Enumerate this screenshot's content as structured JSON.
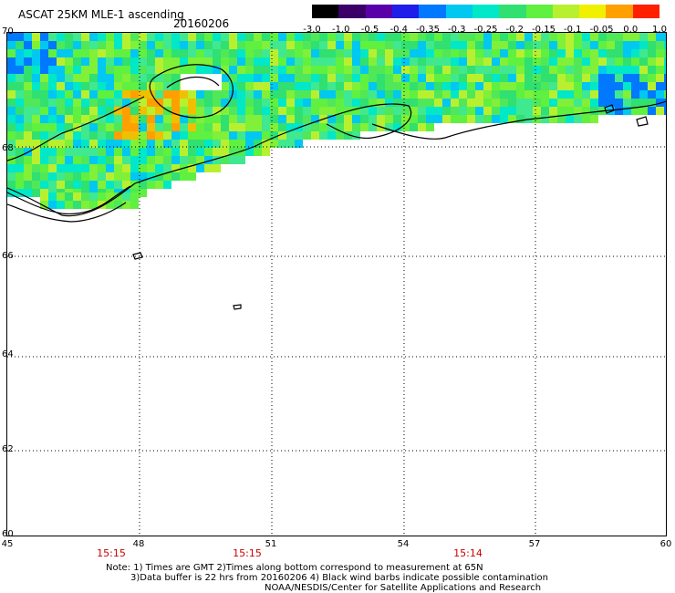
{
  "title": "ASCAT 25KM MLE-1 ascending",
  "date": "20160206",
  "colorbar": {
    "tick_labels": [
      "-3.0",
      "-1.0",
      "-0.5",
      "-0.4",
      "-0.35",
      "-0.3",
      "-0.25",
      "-0.2",
      "-0.15",
      "-0.1",
      "-0.05",
      "0.0",
      "1.0"
    ],
    "colors": [
      "#000000",
      "#3a0068",
      "#5a00a8",
      "#1e1ee8",
      "#0078ff",
      "#00c8f0",
      "#00e8c8",
      "#30e070",
      "#60f040",
      "#b8f030",
      "#f0f000",
      "#ffa000",
      "#ff2000"
    ]
  },
  "axes": {
    "lat_labels": [
      "70",
      "68",
      "66",
      "64",
      "62",
      "60"
    ],
    "lon_labels": [
      "45",
      "48",
      "51",
      "54",
      "57",
      "60"
    ]
  },
  "times": [
    "15:15",
    "15:15",
    "15:14"
  ],
  "notes": [
    "Note: 1) Times are GMT 2)Times along bottom correspond to measurement at 65N",
    "3)Data buffer is 22 hrs from 20160206 4) Black wind barbs indicate possible contamination",
    "NOAA/NESDIS/Center for Satellite Applications and Research"
  ]
}
